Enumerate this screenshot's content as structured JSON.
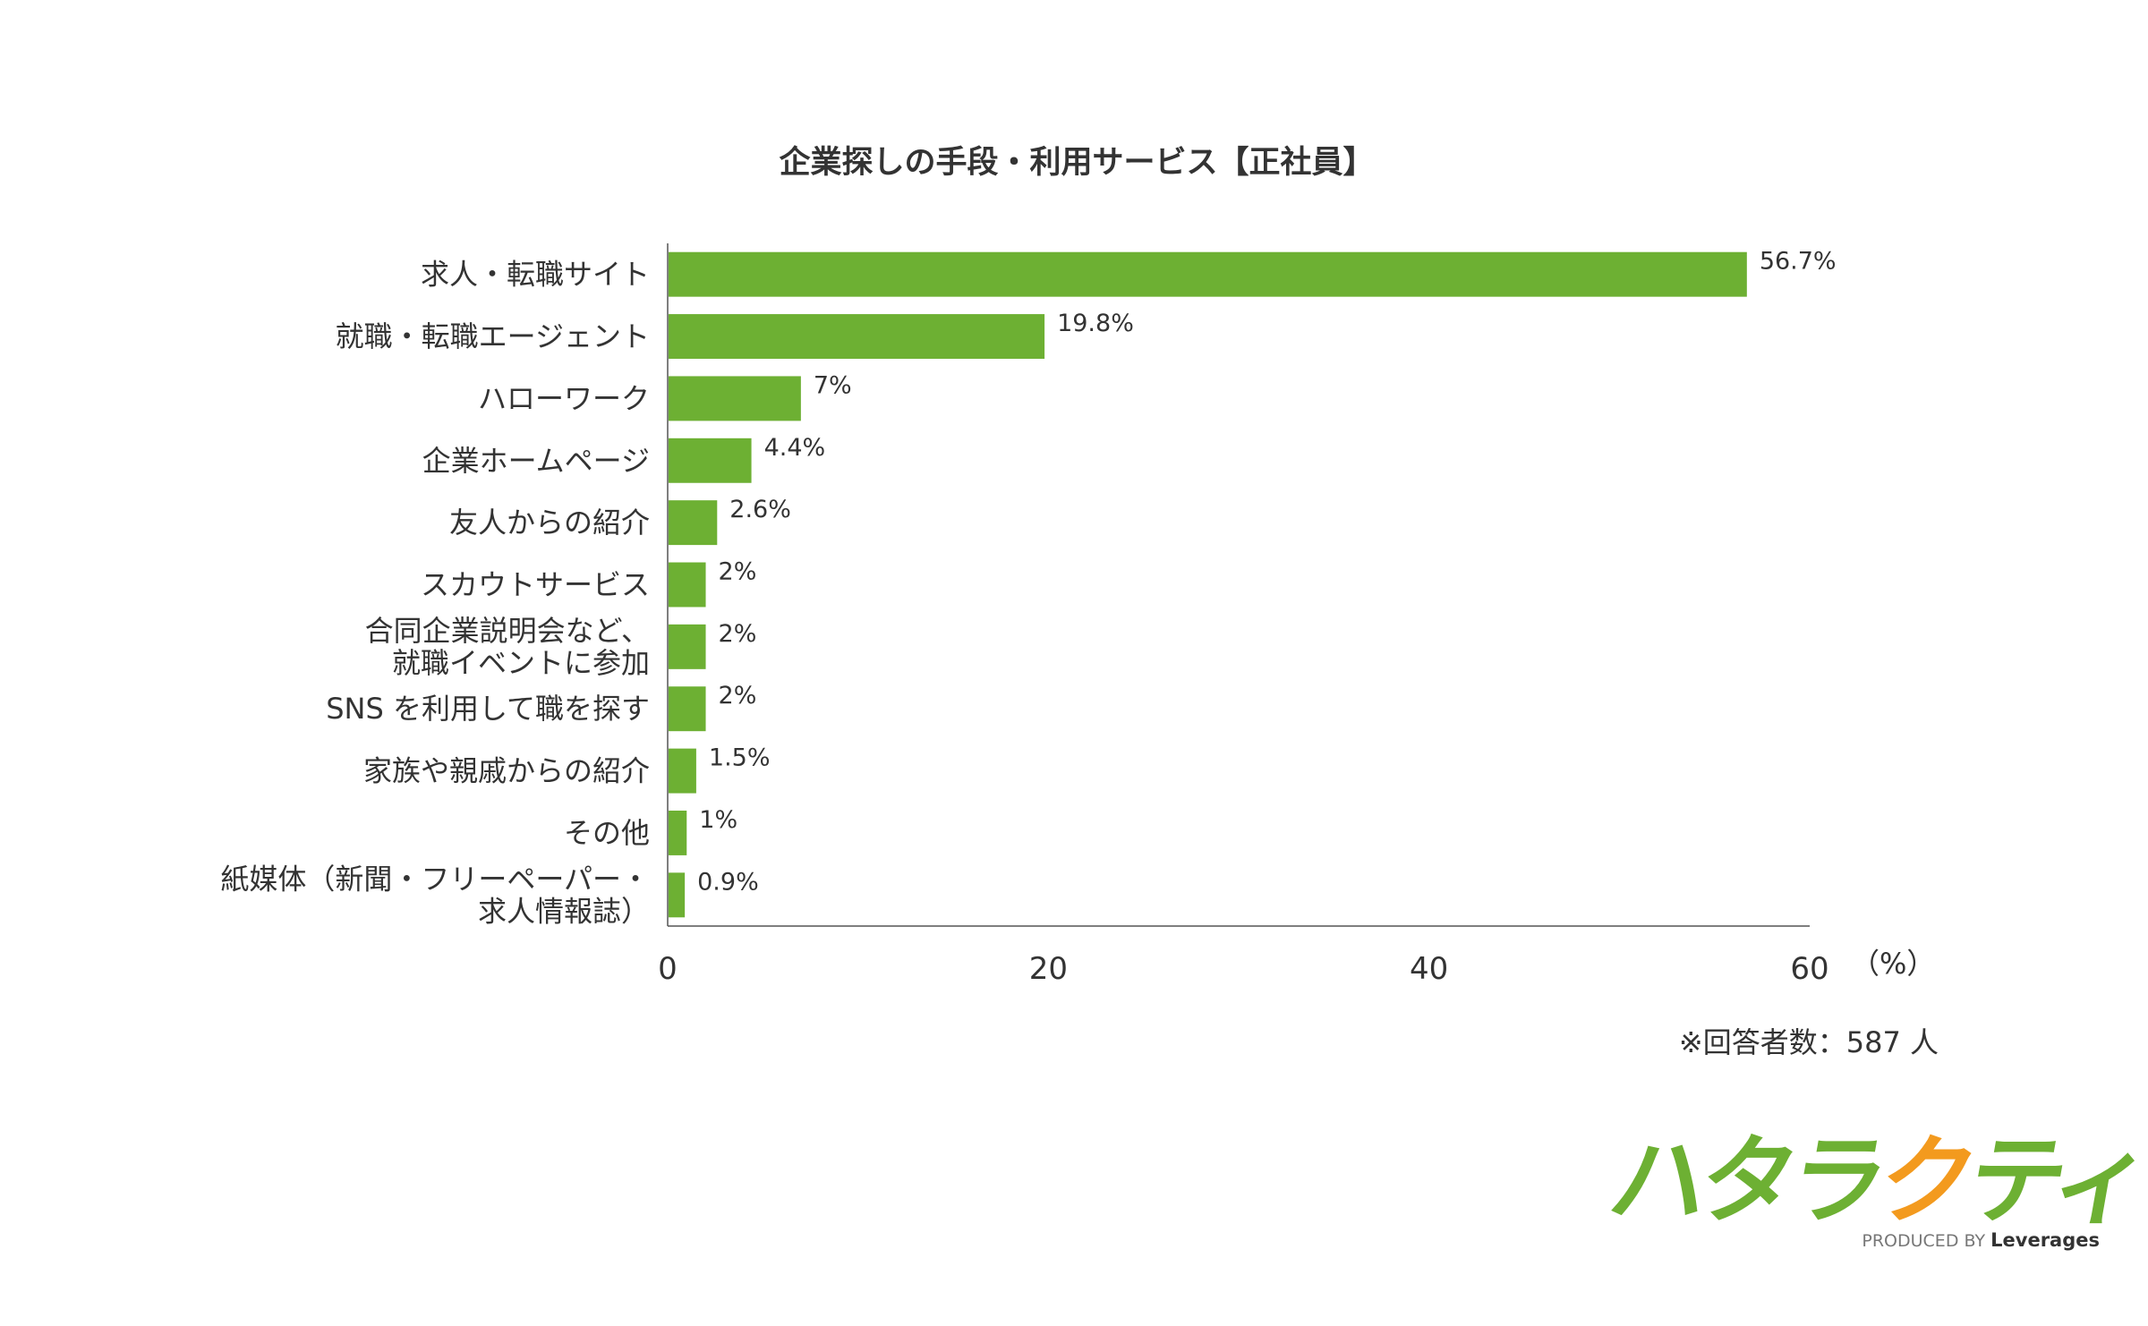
{
  "chart_data": {
    "type": "bar",
    "orientation": "horizontal",
    "title": "企業探しの手段・利用サービス【正社員】",
    "categories": [
      [
        "求人・転職サイト"
      ],
      [
        "就職・転職エージェント"
      ],
      [
        "ハローワーク"
      ],
      [
        "企業ホームページ"
      ],
      [
        "友人からの紹介"
      ],
      [
        "スカウトサービス"
      ],
      [
        "合同企業説明会など、",
        "就職イベントに参加"
      ],
      [
        "SNS を利用して職を探す"
      ],
      [
        "家族や親戚からの紹介"
      ],
      [
        "その他"
      ],
      [
        "紙媒体（新聞・フリーペーパー・",
        "求人情報誌）"
      ]
    ],
    "values": [
      56.7,
      19.8,
      7,
      4.4,
      2.6,
      2,
      2,
      2,
      1.5,
      1,
      0.9
    ],
    "value_labels": [
      "56.7%",
      "19.8%",
      "7%",
      "4.4%",
      "2.6%",
      "2%",
      "2%",
      "2%",
      "1.5%",
      "1%",
      "0.9%"
    ],
    "xlim": [
      0,
      60
    ],
    "xticks": [
      0,
      20,
      40,
      60
    ],
    "xlabel": "",
    "unit_label": "（%）",
    "bar_color": "#6db033",
    "grid": false,
    "note": "※回答者数：587 人"
  },
  "logo": {
    "part1": "ハタラ",
    "part2": "ク",
    "part3": "ティブ",
    "produced_by": "PRODUCED BY",
    "brand": "Leverages",
    "green": "#6db033",
    "orange": "#f39a1e"
  }
}
